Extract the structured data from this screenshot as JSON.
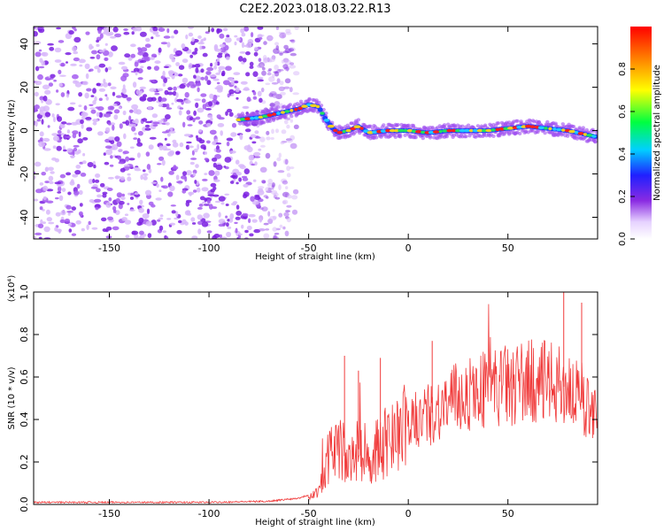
{
  "title": "C2E2.2023.018.03.22.R13",
  "chart_data": [
    {
      "type": "heatmap",
      "title": "C2E2.2023.018.03.22.R13",
      "xlabel": "Height of straight line (km)",
      "ylabel": "Frequency (Hz)",
      "xlim": [
        -188,
        95
      ],
      "ylim": [
        -50,
        48
      ],
      "x_ticks": [
        -150,
        -100,
        -50,
        0,
        50
      ],
      "y_ticks": [
        -40,
        -20,
        0,
        20,
        40
      ],
      "colorbar": {
        "label": "Normalized spectral amplitude",
        "range": [
          0.0,
          1.0
        ],
        "ticks": [
          0.0,
          0.2,
          0.4,
          0.6,
          0.8
        ],
        "colormap": "rainbow"
      },
      "ridge": {
        "x": [
          -85,
          -75,
          -65,
          -55,
          -50,
          -45,
          -42,
          -38,
          -35,
          -30,
          -25,
          -20,
          -10,
          0,
          10,
          20,
          30,
          40,
          50,
          60,
          70,
          80,
          90,
          95
        ],
        "y": [
          5,
          6,
          8,
          10,
          12,
          11,
          6,
          1,
          -1,
          0,
          2,
          -1,
          0,
          0,
          -1,
          0,
          0,
          0,
          1,
          2,
          1,
          0,
          -2,
          -3
        ],
        "peak_amplitude": 0.9
      },
      "noise_region_x": [
        -188,
        -62
      ],
      "grid": false
    },
    {
      "type": "line",
      "xlabel": "Height of straight line (km)",
      "ylabel": "SNR (10 * v/v)",
      "y_multiplier": "(x10⁴)",
      "xlim": [
        -188,
        95
      ],
      "ylim": [
        0,
        1.0
      ],
      "x_ticks": [
        -150,
        -100,
        -50,
        0,
        50
      ],
      "y_ticks": [
        0.0,
        0.2,
        0.4,
        0.6,
        0.8,
        1.0
      ],
      "color": "#f03a3a",
      "envelope": {
        "x": [
          -188,
          -100,
          -70,
          -55,
          -45,
          -40,
          -35,
          -30,
          -25,
          -20,
          -15,
          -10,
          0,
          10,
          20,
          30,
          40,
          50,
          60,
          70,
          80,
          90,
          95
        ],
        "y": [
          0.01,
          0.01,
          0.015,
          0.03,
          0.06,
          0.22,
          0.3,
          0.18,
          0.26,
          0.2,
          0.28,
          0.3,
          0.37,
          0.42,
          0.48,
          0.52,
          0.55,
          0.56,
          0.58,
          0.57,
          0.55,
          0.45,
          0.5
        ]
      },
      "spikes": [
        {
          "x": -32,
          "y": 0.7
        },
        {
          "x": -25,
          "y": 0.63
        },
        {
          "x": -14,
          "y": 0.69
        },
        {
          "x": 12,
          "y": 0.77
        },
        {
          "x": 78,
          "y": 1.0
        },
        {
          "x": 87,
          "y": 0.95
        }
      ],
      "grid": false
    }
  ]
}
